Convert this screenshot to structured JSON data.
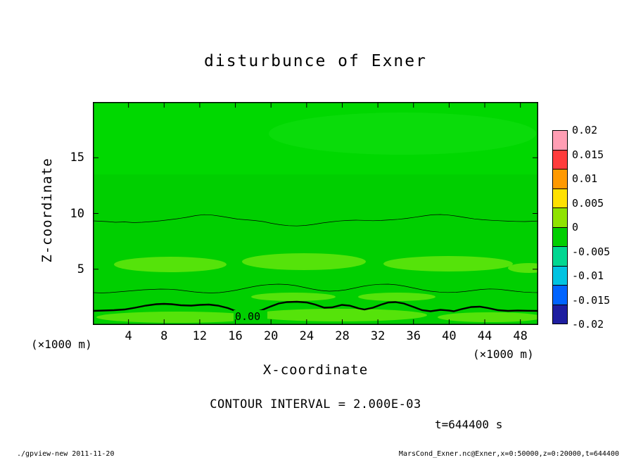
{
  "labels": {
    "title": "disturbunce of Exner",
    "x_axis": "X-coordinate",
    "z_axis": "Z-coordinate",
    "unit_left": "(×1000 m)",
    "unit_right": "(×1000 m)",
    "contour_interval": "CONTOUR INTERVAL = 2.000E-03",
    "time": "t=644400 s",
    "contour_label": "0.00"
  },
  "footer": {
    "left": "./gpview-new  2011-11-20",
    "right": "MarsCond_Exner.nc@Exner,x=0:50000,z=0:20000,t=644400"
  },
  "chart_data": {
    "type": "contour",
    "title": "disturbunce of Exner",
    "variable": "Exner",
    "xlabel": "X-coordinate (×1000 m)",
    "ylabel": "Z-coordinate (×1000 m)",
    "x_range_km": [
      0,
      50
    ],
    "z_range_km": [
      0,
      20
    ],
    "x_ticks": [
      4,
      8,
      12,
      16,
      20,
      24,
      28,
      32,
      36,
      40,
      44,
      48
    ],
    "z_ticks": [
      5,
      10,
      15
    ],
    "contour_interval": 0.002,
    "time_seconds": 644400,
    "grid": false,
    "legend_position": "right-colorbar",
    "colorbar": {
      "min": -0.02,
      "max": 0.02,
      "tick_labels": [
        "0.02",
        "0.015",
        "0.01",
        "0.005",
        "0",
        "-0.005",
        "-0.01",
        "-0.015",
        "-0.02"
      ],
      "colors": [
        "#ff9eb4",
        "#ff3c3c",
        "#ff9900",
        "#ffe100",
        "#8fe300",
        "#00cf00",
        "#00d791",
        "#00c3e1",
        "#0064ff",
        "#1e1ea0"
      ]
    },
    "field_colors": {
      "base_green": "#00cf00",
      "upper_region_green": "#00d800",
      "light_patch_green": "#55e30a"
    },
    "field_summary": "Exner-function disturbance is weakly positive (roughly 0 to 0.005, green shades) over the whole domain; slightly higher values form lighter green patches near z≈5 km and below z≈2 km. A thick zero contour labeled 0.00 undulates near z≈1.5 km, with thin contours near z≈3 km and z≈9.5 km.",
    "contour_lines": [
      {
        "level": 0.0,
        "label": "0.00",
        "style": "thick",
        "points_km": [
          [
            0,
            1.3
          ],
          [
            4,
            1.6
          ],
          [
            8,
            1.9
          ],
          [
            11,
            1.8
          ],
          [
            13,
            1.8
          ],
          [
            15,
            1.6
          ],
          [
            17,
            1.1
          ],
          [
            19,
            1.3
          ],
          [
            21,
            1.7
          ],
          [
            23,
            2.1
          ],
          [
            25,
            1.9
          ],
          [
            26,
            1.6
          ],
          [
            28,
            1.8
          ],
          [
            30,
            1.5
          ],
          [
            33,
            2.1
          ],
          [
            35,
            1.8
          ],
          [
            37,
            1.4
          ],
          [
            39,
            1.6
          ],
          [
            40.5,
            1.3
          ],
          [
            42.5,
            1.8
          ],
          [
            44,
            1.7
          ],
          [
            46,
            1.3
          ],
          [
            48,
            1.3
          ],
          [
            50,
            1.3
          ]
        ]
      },
      {
        "level": 0.002,
        "style": "thin",
        "points_km": [
          [
            0,
            2.9
          ],
          [
            4,
            3.0
          ],
          [
            8,
            3.2
          ],
          [
            11,
            3.2
          ],
          [
            13,
            2.9
          ],
          [
            15,
            2.9
          ],
          [
            18,
            3.3
          ],
          [
            20,
            3.6
          ],
          [
            22,
            3.7
          ],
          [
            24,
            3.6
          ],
          [
            26,
            3.4
          ],
          [
            28,
            3.0
          ],
          [
            31,
            3.5
          ],
          [
            33,
            3.7
          ],
          [
            35,
            3.6
          ],
          [
            37,
            3.3
          ],
          [
            40,
            2.9
          ],
          [
            42,
            3.0
          ],
          [
            44,
            3.2
          ],
          [
            46,
            3.2
          ],
          [
            48,
            3.0
          ],
          [
            50,
            2.9
          ]
        ]
      },
      {
        "level": 0.002,
        "style": "thin",
        "points_km": [
          [
            0,
            9.3
          ],
          [
            4,
            9.2
          ],
          [
            8,
            9.3
          ],
          [
            10,
            9.6
          ],
          [
            12,
            9.9
          ],
          [
            14,
            9.8
          ],
          [
            16,
            9.4
          ],
          [
            18,
            9.3
          ],
          [
            20,
            9.2
          ],
          [
            22,
            9.0
          ],
          [
            23,
            8.9
          ],
          [
            25,
            9.0
          ],
          [
            27,
            9.3
          ],
          [
            29,
            9.4
          ],
          [
            31,
            9.4
          ],
          [
            33,
            9.4
          ],
          [
            35,
            9.5
          ],
          [
            37,
            9.6
          ],
          [
            39,
            9.9
          ],
          [
            41,
            9.8
          ],
          [
            43,
            9.5
          ],
          [
            45,
            9.3
          ],
          [
            47,
            9.2
          ],
          [
            50,
            9.2
          ]
        ]
      }
    ],
    "light_patches_km": [
      {
        "center_x": 8.7,
        "center_z": 5.4,
        "half_width": 6.3,
        "half_height": 0.7
      },
      {
        "center_x": 23.7,
        "center_z": 5.7,
        "half_width": 7.0,
        "half_height": 0.75
      },
      {
        "center_x": 39.9,
        "center_z": 5.5,
        "half_width": 7.3,
        "half_height": 0.7
      },
      {
        "center_x": 9.5,
        "center_z": 0.7,
        "half_width": 9.1,
        "half_height": 0.5
      },
      {
        "center_x": 27.6,
        "center_z": 0.9,
        "half_width": 9.9,
        "half_height": 0.55
      },
      {
        "center_x": 44.6,
        "center_z": 0.7,
        "half_width": 5.9,
        "half_height": 0.45
      }
    ]
  }
}
